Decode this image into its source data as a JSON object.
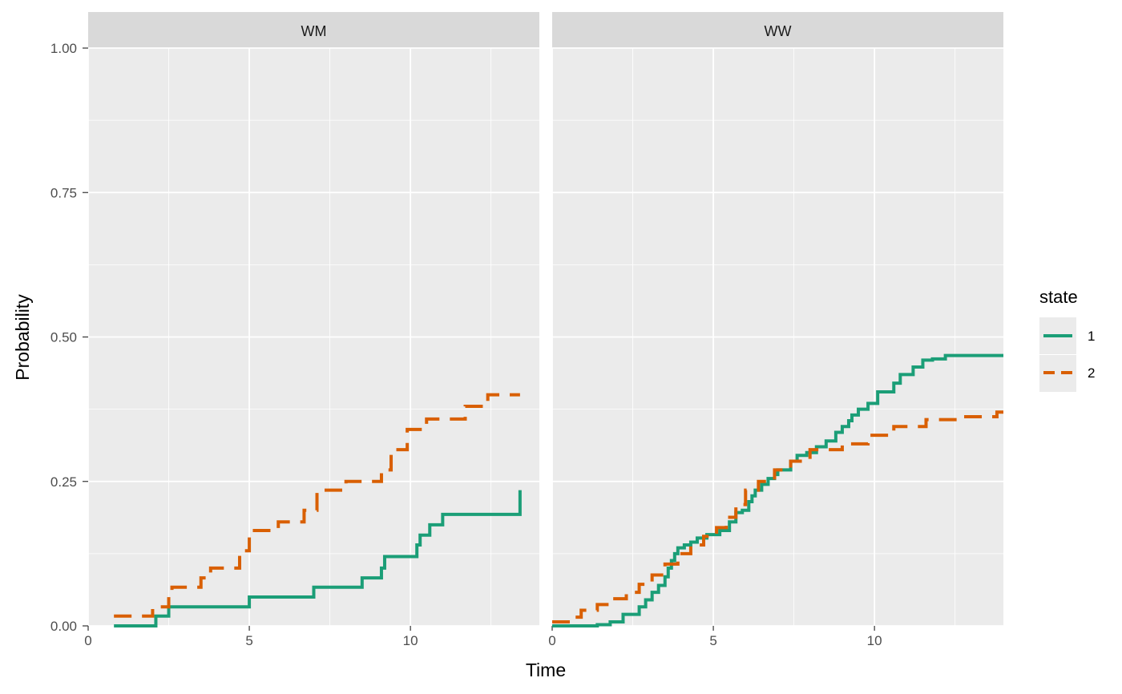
{
  "chart_data": {
    "type": "line",
    "xlabel": "Time",
    "ylabel": "Probability",
    "xlim": [
      0,
      14
    ],
    "ylim": [
      0,
      1
    ],
    "x_ticks": [
      "0",
      "5",
      "10"
    ],
    "x_tick_values": [
      0,
      5,
      10
    ],
    "y_ticks": [
      "0.00",
      "0.25",
      "0.50",
      "0.75",
      "1.00"
    ],
    "y_tick_values": [
      0,
      0.25,
      0.5,
      0.75,
      1
    ],
    "grid": true,
    "legend": {
      "title": "state",
      "position": "right",
      "entries": [
        {
          "label": "1",
          "color": "#1b9e77",
          "dash": "solid"
        },
        {
          "label": "2",
          "color": "#d95f02",
          "dash": "dashed"
        }
      ]
    },
    "panels": [
      {
        "strip": "WM",
        "series": [
          {
            "name": "1",
            "step": true,
            "x": [
              0.8,
              2.1,
              2.5,
              5.0,
              7.0,
              8.5,
              9.1,
              9.2,
              10.2,
              10.3,
              10.6,
              11.0,
              13.4,
              13.4
            ],
            "y": [
              0.0,
              0.017,
              0.033,
              0.05,
              0.067,
              0.083,
              0.1,
              0.12,
              0.14,
              0.157,
              0.175,
              0.193,
              0.193,
              0.235
            ]
          },
          {
            "name": "2",
            "step": true,
            "x": [
              0.8,
              2.0,
              2.5,
              2.6,
              3.5,
              3.8,
              4.7,
              5.0,
              5.9,
              6.7,
              7.1,
              8.0,
              9.1,
              9.4,
              9.9,
              10.5,
              11.7,
              12.4,
              13.4
            ],
            "y": [
              0.017,
              0.033,
              0.05,
              0.067,
              0.083,
              0.1,
              0.13,
              0.165,
              0.18,
              0.2,
              0.235,
              0.25,
              0.27,
              0.305,
              0.34,
              0.358,
              0.38,
              0.4,
              0.4
            ]
          }
        ]
      },
      {
        "strip": "WW",
        "series": [
          {
            "name": "1",
            "step": true,
            "x": [
              0.0,
              1.4,
              1.8,
              2.2,
              2.7,
              2.9,
              3.1,
              3.3,
              3.5,
              3.6,
              3.7,
              3.8,
              3.9,
              4.1,
              4.3,
              4.5,
              4.8,
              5.2,
              5.5,
              5.7,
              5.9,
              6.1,
              6.2,
              6.3,
              6.5,
              6.7,
              6.9,
              7.0,
              7.4,
              7.6,
              7.9,
              8.2,
              8.5,
              8.8,
              9.0,
              9.2,
              9.3,
              9.5,
              9.8,
              10.1,
              10.6,
              10.8,
              11.2,
              11.5,
              11.8,
              12.2,
              14.0
            ],
            "y": [
              0.0,
              0.002,
              0.007,
              0.02,
              0.033,
              0.045,
              0.058,
              0.07,
              0.085,
              0.1,
              0.113,
              0.125,
              0.135,
              0.14,
              0.145,
              0.152,
              0.158,
              0.165,
              0.18,
              0.196,
              0.2,
              0.215,
              0.225,
              0.235,
              0.245,
              0.255,
              0.262,
              0.27,
              0.285,
              0.295,
              0.3,
              0.31,
              0.32,
              0.335,
              0.345,
              0.355,
              0.365,
              0.375,
              0.385,
              0.405,
              0.42,
              0.435,
              0.448,
              0.46,
              0.462,
              0.468,
              0.468
            ]
          },
          {
            "name": "2",
            "step": true,
            "x": [
              0.0,
              0.6,
              0.9,
              1.4,
              1.8,
              2.3,
              2.7,
              3.1,
              3.5,
              3.9,
              4.3,
              4.7,
              5.1,
              5.4,
              5.7,
              6.0,
              6.4,
              6.9,
              7.4,
              8.0,
              9.0,
              9.8,
              10.6,
              11.6,
              12.6,
              13.8,
              14.0
            ],
            "y": [
              0.007,
              0.015,
              0.027,
              0.037,
              0.047,
              0.058,
              0.072,
              0.088,
              0.107,
              0.125,
              0.14,
              0.155,
              0.17,
              0.188,
              0.21,
              0.235,
              0.25,
              0.27,
              0.285,
              0.305,
              0.315,
              0.33,
              0.345,
              0.357,
              0.362,
              0.37,
              0.37
            ]
          }
        ]
      }
    ]
  }
}
